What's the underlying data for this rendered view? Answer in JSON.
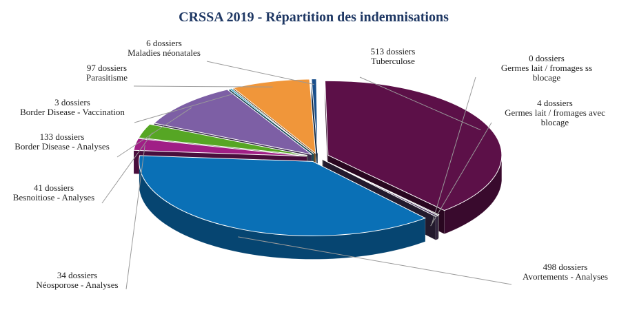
{
  "chart_data": {
    "type": "pie",
    "title": "CRSSA 2019 - Répartition des indemnisations",
    "slices": [
      {
        "count": 513,
        "count_label": "513 dossiers",
        "name_lines": [
          "Tuberculose"
        ],
        "color": "#5c1048"
      },
      {
        "count": 0,
        "count_label": "0 dossiers",
        "name_lines": [
          "Germes lait / fromages ss",
          "blocage"
        ],
        "color": "#7a7a7a"
      },
      {
        "count": 4,
        "count_label": "4 dossiers",
        "name_lines": [
          "Germes lait / fromages avec",
          "blocage"
        ],
        "color": "#4e3a63"
      },
      {
        "count": 498,
        "count_label": "498 dossiers",
        "name_lines": [
          "Avortements - Analyses"
        ],
        "color": "#0a70b6"
      },
      {
        "count": 34,
        "count_label": "34 dossiers",
        "name_lines": [
          "Néosporose - Analyses"
        ],
        "color": "#a01f86"
      },
      {
        "count": 41,
        "count_label": "41 dossiers",
        "name_lines": [
          "Besnoitiose - Analyses"
        ],
        "color": "#56a624"
      },
      {
        "count": 133,
        "count_label": "133 dossiers",
        "name_lines": [
          "Border Disease - Analyses"
        ],
        "color": "#7d5fa5"
      },
      {
        "count": 3,
        "count_label": "3 dossiers",
        "name_lines": [
          "Border Disease - Vaccination"
        ],
        "color": "#2e9fbf"
      },
      {
        "count": 97,
        "count_label": "97 dossiers",
        "name_lines": [
          "Parasitisme"
        ],
        "color": "#f0963a"
      },
      {
        "count": 6,
        "count_label": "6 dossiers",
        "name_lines": [
          "Maladies néonatales"
        ],
        "color": "#1a4f8b"
      }
    ]
  }
}
